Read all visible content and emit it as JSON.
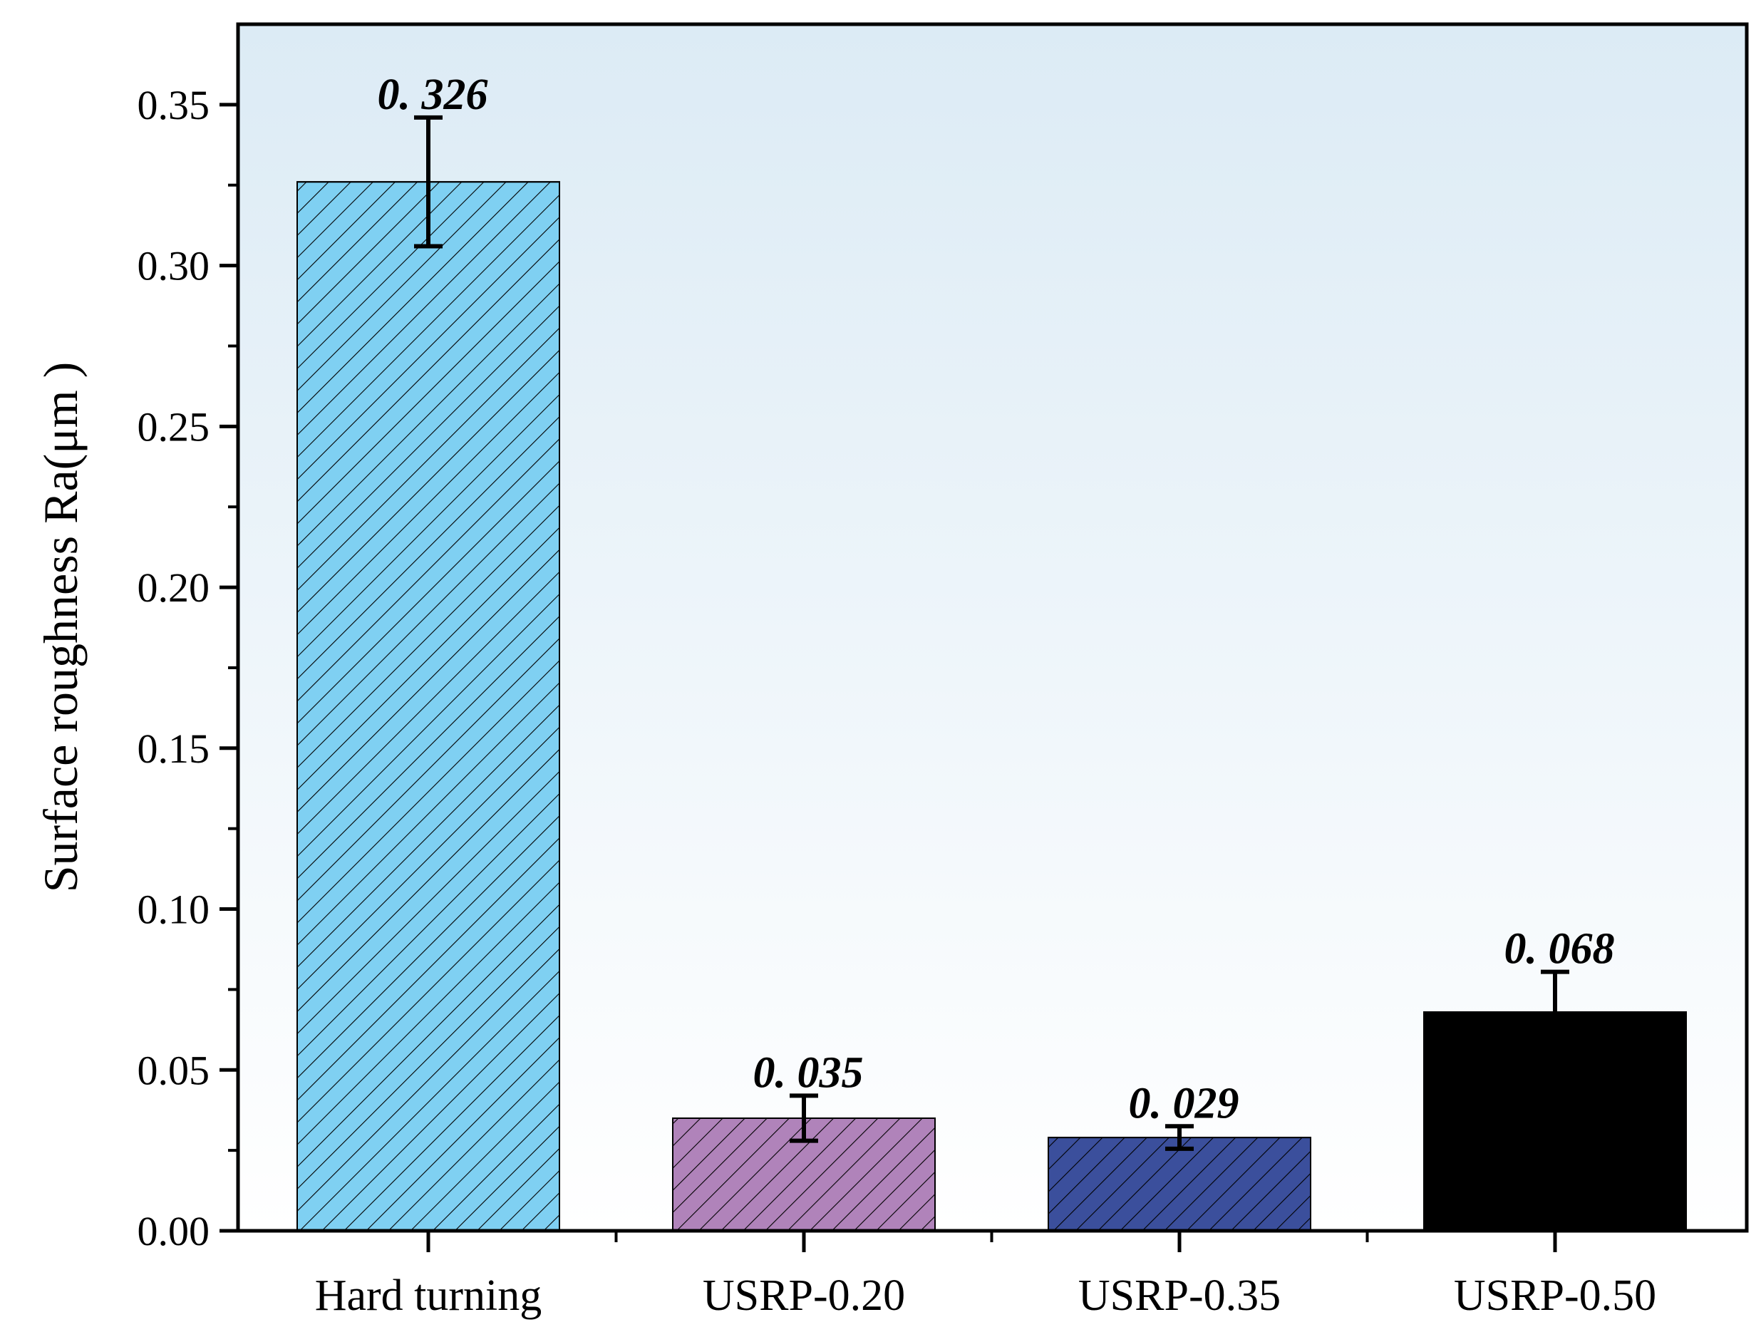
{
  "chart_data": {
    "type": "bar",
    "categories": [
      "Hard turning",
      "USRP-0.20",
      "USRP-0.35",
      "USRP-0.50"
    ],
    "values": [
      0.326,
      0.035,
      0.029,
      0.068
    ],
    "errors": [
      0.02,
      0.007,
      0.0035,
      0.0125
    ],
    "data_labels": [
      "0. 326",
      "0. 035",
      "0. 029",
      "0. 068"
    ],
    "colors": [
      "#7fd0f2",
      "#b083ba",
      "#3b4f9c",
      "#000000"
    ],
    "hatched": [
      true,
      true,
      true,
      false
    ],
    "title": "",
    "xlabel": "",
    "ylabel": "Surface roughness Ra(μm )",
    "ylim": [
      0,
      0.375
    ],
    "yticks": [
      0.0,
      0.05,
      0.1,
      0.15,
      0.2,
      0.25,
      0.3,
      0.35
    ],
    "ytick_labels": [
      "0.00",
      "0.05",
      "0.10",
      "0.15",
      "0.20",
      "0.25",
      "0.30",
      "0.35"
    ],
    "background_gradient": [
      "#dcebf5",
      "#ffffff"
    ],
    "grid": false,
    "legend": "none"
  }
}
